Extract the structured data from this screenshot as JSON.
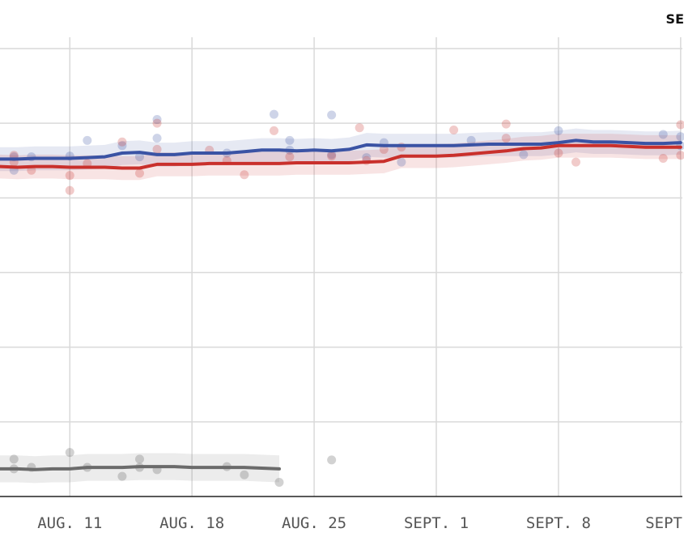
{
  "corner_label": "SE",
  "chart_data": {
    "type": "line",
    "title": "",
    "xlabel": "",
    "ylabel": "",
    "x_ticks": [
      "AUG. 11",
      "AUG. 18",
      "AUG. 25",
      "SEPT. 1",
      "SEPT. 8",
      "SEPT"
    ],
    "x_tick_days": [
      11,
      18,
      25,
      32,
      39,
      46
    ],
    "xlim": [
      7,
      46.1
    ],
    "ylim": [
      0,
      60
    ],
    "y_gridlines": [
      10,
      20,
      30,
      40,
      50,
      60
    ],
    "grid": true,
    "colors": {
      "blue": "#3a53a4",
      "red": "#c9302c",
      "gray": "#6b6b6b"
    },
    "series": [
      {
        "color": "blue",
        "x": [
          7,
          8,
          9,
          10,
          11,
          12,
          13,
          14,
          15,
          16,
          17,
          18,
          19,
          20,
          21,
          22,
          23,
          24,
          25,
          26,
          27,
          28,
          29,
          30,
          31,
          32,
          33,
          34,
          35,
          36,
          37,
          38,
          39,
          40,
          41,
          42,
          43,
          44,
          45,
          46
        ],
        "values": [
          45.2,
          45.2,
          45.3,
          45.3,
          45.3,
          45.4,
          45.5,
          46.0,
          46.1,
          45.8,
          45.8,
          46.0,
          46.0,
          46.0,
          46.2,
          46.4,
          46.4,
          46.3,
          46.4,
          46.3,
          46.5,
          47.1,
          47.0,
          47.0,
          47.0,
          47.0,
          47.0,
          47.1,
          47.2,
          47.2,
          47.2,
          47.2,
          47.4,
          47.7,
          47.5,
          47.5,
          47.4,
          47.3,
          47.3,
          47.4
        ],
        "band": 1.6
      },
      {
        "color": "red",
        "x": [
          7,
          8,
          9,
          10,
          11,
          12,
          13,
          14,
          15,
          16,
          17,
          18,
          19,
          20,
          21,
          22,
          23,
          24,
          25,
          26,
          27,
          28,
          29,
          30,
          31,
          32,
          33,
          34,
          35,
          36,
          37,
          38,
          39,
          40,
          41,
          42,
          43,
          44,
          45,
          46
        ],
        "values": [
          44.2,
          44.1,
          44.2,
          44.2,
          44.1,
          44.1,
          44.1,
          44.0,
          44.0,
          44.5,
          44.5,
          44.5,
          44.6,
          44.6,
          44.6,
          44.6,
          44.6,
          44.7,
          44.7,
          44.7,
          44.7,
          44.8,
          44.9,
          45.6,
          45.6,
          45.6,
          45.7,
          45.9,
          46.1,
          46.3,
          46.6,
          46.7,
          47.0,
          47.0,
          47.0,
          47.0,
          46.9,
          46.8,
          46.8,
          46.8
        ],
        "band": 1.6
      },
      {
        "color": "gray",
        "x": [
          7,
          8,
          9,
          10,
          11,
          12,
          13,
          14,
          15,
          16,
          17,
          18,
          19,
          20,
          21,
          22,
          23
        ],
        "values": [
          3.7,
          3.7,
          3.6,
          3.7,
          3.7,
          3.9,
          3.9,
          3.9,
          4.0,
          4.0,
          4.0,
          3.9,
          3.9,
          3.9,
          3.9,
          3.8,
          3.7
        ],
        "band": 1.8
      }
    ],
    "points": [
      {
        "color": "blue",
        "x": 7.8,
        "y": 45.5
      },
      {
        "color": "blue",
        "x": 7.8,
        "y": 43.7
      },
      {
        "color": "blue",
        "x": 8.8,
        "y": 45.5
      },
      {
        "color": "blue",
        "x": 11,
        "y": 45.6
      },
      {
        "color": "blue",
        "x": 12,
        "y": 47.7
      },
      {
        "color": "blue",
        "x": 14,
        "y": 47.0
      },
      {
        "color": "blue",
        "x": 16,
        "y": 48.0
      },
      {
        "color": "blue",
        "x": 16,
        "y": 50.5
      },
      {
        "color": "blue",
        "x": 15,
        "y": 45.5
      },
      {
        "color": "blue",
        "x": 20,
        "y": 46.0
      },
      {
        "color": "blue",
        "x": 22.7,
        "y": 51.2
      },
      {
        "color": "blue",
        "x": 23.6,
        "y": 46.4
      },
      {
        "color": "blue",
        "x": 26,
        "y": 51.1
      },
      {
        "color": "blue",
        "x": 26,
        "y": 45.8
      },
      {
        "color": "blue",
        "x": 28,
        "y": 45.4
      },
      {
        "color": "blue",
        "x": 29,
        "y": 47.4
      },
      {
        "color": "blue",
        "x": 30,
        "y": 44.8
      },
      {
        "color": "blue",
        "x": 34,
        "y": 47.7
      },
      {
        "color": "blue",
        "x": 37,
        "y": 45.8
      },
      {
        "color": "blue",
        "x": 39,
        "y": 49.0
      },
      {
        "color": "blue",
        "x": 45,
        "y": 48.5
      },
      {
        "color": "blue",
        "x": 46,
        "y": 48.2
      },
      {
        "color": "blue",
        "x": 46,
        "y": 47.0
      },
      {
        "color": "blue",
        "x": 23.6,
        "y": 47.7
      },
      {
        "color": "red",
        "x": 7.8,
        "y": 45.7
      },
      {
        "color": "red",
        "x": 7.8,
        "y": 44.8
      },
      {
        "color": "red",
        "x": 8.8,
        "y": 43.7
      },
      {
        "color": "red",
        "x": 11,
        "y": 43.0
      },
      {
        "color": "red",
        "x": 11,
        "y": 41.0
      },
      {
        "color": "red",
        "x": 12,
        "y": 44.6
      },
      {
        "color": "red",
        "x": 14,
        "y": 47.5
      },
      {
        "color": "red",
        "x": 15,
        "y": 43.3
      },
      {
        "color": "red",
        "x": 16,
        "y": 50.0
      },
      {
        "color": "red",
        "x": 16,
        "y": 46.5
      },
      {
        "color": "red",
        "x": 19,
        "y": 46.4
      },
      {
        "color": "red",
        "x": 20,
        "y": 45.0
      },
      {
        "color": "red",
        "x": 21,
        "y": 43.1
      },
      {
        "color": "red",
        "x": 22.7,
        "y": 49.0
      },
      {
        "color": "red",
        "x": 23.6,
        "y": 45.5
      },
      {
        "color": "red",
        "x": 26,
        "y": 45.6
      },
      {
        "color": "red",
        "x": 27.6,
        "y": 49.4
      },
      {
        "color": "red",
        "x": 28,
        "y": 45.0
      },
      {
        "color": "red",
        "x": 29,
        "y": 46.5
      },
      {
        "color": "red",
        "x": 30,
        "y": 46.8
      },
      {
        "color": "red",
        "x": 33,
        "y": 49.1
      },
      {
        "color": "red",
        "x": 36,
        "y": 49.9
      },
      {
        "color": "red",
        "x": 36,
        "y": 48.0
      },
      {
        "color": "red",
        "x": 40,
        "y": 44.8
      },
      {
        "color": "red",
        "x": 39,
        "y": 46.0
      },
      {
        "color": "red",
        "x": 45,
        "y": 45.3
      },
      {
        "color": "red",
        "x": 46,
        "y": 49.8
      },
      {
        "color": "red",
        "x": 46,
        "y": 45.7
      },
      {
        "color": "gray",
        "x": 7.8,
        "y": 5.0
      },
      {
        "color": "gray",
        "x": 7.8,
        "y": 3.7
      },
      {
        "color": "gray",
        "x": 8.8,
        "y": 3.9
      },
      {
        "color": "gray",
        "x": 11,
        "y": 5.9
      },
      {
        "color": "gray",
        "x": 12,
        "y": 3.9
      },
      {
        "color": "gray",
        "x": 14,
        "y": 2.7
      },
      {
        "color": "gray",
        "x": 15,
        "y": 5.0
      },
      {
        "color": "gray",
        "x": 15,
        "y": 3.9
      },
      {
        "color": "gray",
        "x": 16,
        "y": 3.6
      },
      {
        "color": "gray",
        "x": 20,
        "y": 4.0
      },
      {
        "color": "gray",
        "x": 21,
        "y": 2.9
      },
      {
        "color": "gray",
        "x": 23,
        "y": 1.9
      },
      {
        "color": "gray",
        "x": 26,
        "y": 4.9
      }
    ]
  }
}
